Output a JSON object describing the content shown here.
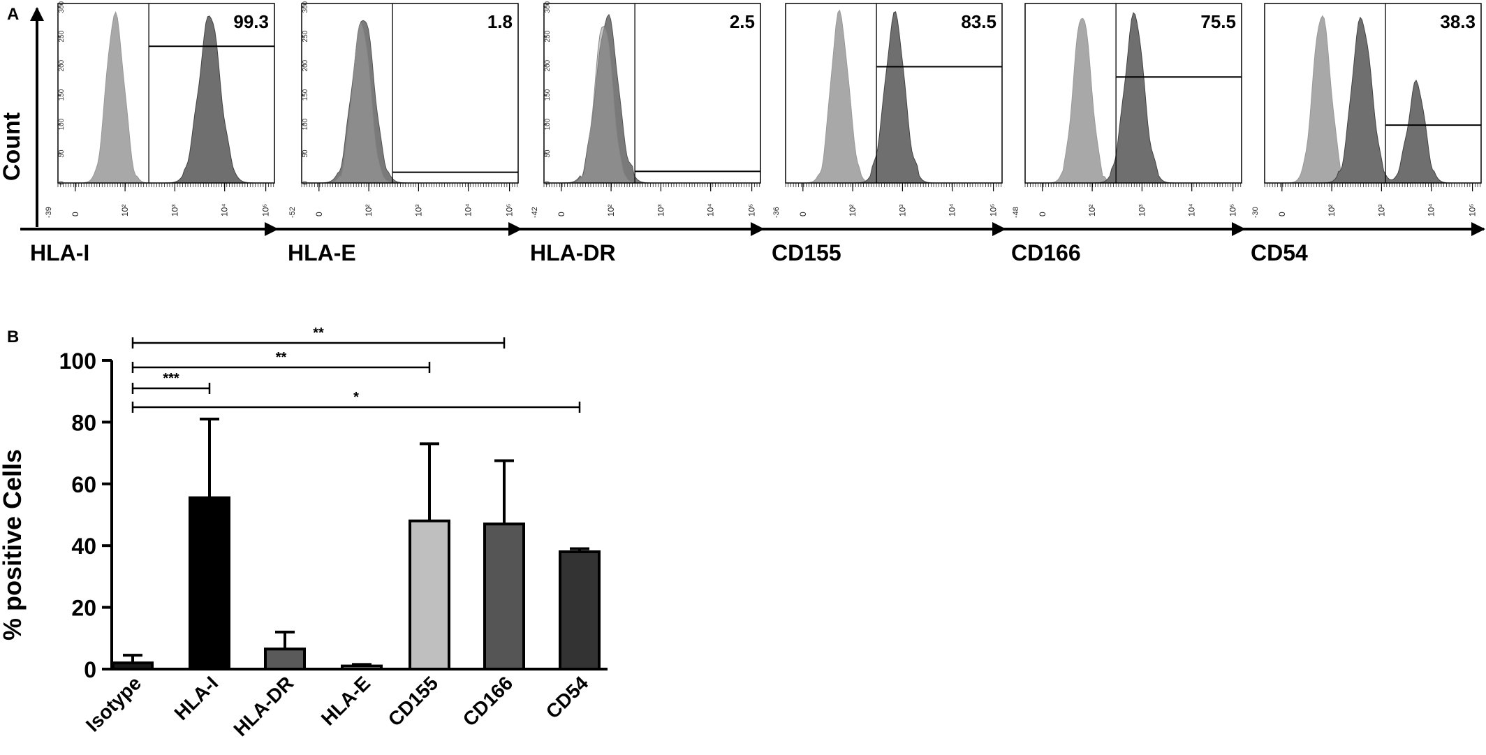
{
  "figure": {
    "panel_a_label": "A",
    "panel_b_label": "B"
  },
  "chart_data": [
    {
      "type": "histogram",
      "panel": "A",
      "ylabel": "Count",
      "x_scale": "biexponential",
      "panels": [
        {
          "marker": "HLA-I",
          "percent_positive": "99.3",
          "x_min_tick": "-39",
          "x_ticks": [
            "0",
            "10²",
            "10³",
            "10⁴",
            "10⁵"
          ],
          "y_ticks": [
            "0",
            "50",
            "100",
            "150",
            "200",
            "250",
            "300"
          ],
          "gate_start": 300,
          "isotype_peak": 40,
          "stained_peak": 5000,
          "stained_width": 0.75
        },
        {
          "marker": "HLA-E",
          "percent_positive": "1.8",
          "x_min_tick": "-52",
          "x_ticks": [
            "0",
            "10²",
            "10³",
            "10⁴",
            "10⁵"
          ],
          "y_ticks": [
            "0",
            "50",
            "100",
            "150",
            "200",
            "250",
            "300"
          ],
          "gate_start": 300,
          "isotype_peak": 50,
          "stained_peak": 60,
          "stained_width": 0.75
        },
        {
          "marker": "HLA-DR",
          "percent_positive": "2.5",
          "x_min_tick": "-42",
          "x_ticks": [
            "0",
            "10²",
            "10³",
            "10⁴",
            "10⁵"
          ],
          "y_ticks": [
            "0",
            "50",
            "100",
            "150",
            "200",
            "250",
            "300"
          ],
          "gate_start": 300,
          "isotype_peak": 50,
          "stained_peak": 70,
          "stained_width": 0.75
        },
        {
          "marker": "CD155",
          "percent_positive": "83.5",
          "x_min_tick": "-36",
          "x_ticks": [
            "0",
            "10²",
            "10³",
            "10⁴",
            "10⁵"
          ],
          "y_ticks": [],
          "gate_start": 300,
          "isotype_peak": 30,
          "stained_peak": 700,
          "stained_width": 0.7
        },
        {
          "marker": "CD166",
          "percent_positive": "75.5",
          "x_min_tick": "-48",
          "x_ticks": [
            "0",
            "10²",
            "10³",
            "10⁴",
            "10⁵"
          ],
          "y_ticks": [],
          "gate_start": 300,
          "isotype_peak": 40,
          "stained_peak": 700,
          "stained_width": 0.7
        },
        {
          "marker": "CD54",
          "percent_positive": "38.3",
          "x_min_tick": "-30",
          "x_ticks": [
            "0",
            "10²",
            "10³",
            "10⁴",
            "10⁵"
          ],
          "y_ticks": [],
          "gate_start": 1200,
          "isotype_peak": 40,
          "stained_peak": 400,
          "stained_width": 0.7,
          "second_peak": 5000
        }
      ]
    },
    {
      "type": "bar",
      "panel": "B",
      "ylabel": "% positive Cells",
      "ylim": [
        0,
        100
      ],
      "yticks": [
        "0",
        "20",
        "40",
        "60",
        "80",
        "100"
      ],
      "categories": [
        "Isotype",
        "HLA-I",
        "HLA-DR",
        "HLA-E",
        "CD155",
        "CD166",
        "CD54"
      ],
      "values": [
        2,
        55.5,
        6.5,
        1,
        48,
        47,
        38
      ],
      "error_upper": [
        4.5,
        81,
        12,
        1.5,
        73,
        67.5,
        39
      ],
      "bar_colors": [
        "#1a1a1a",
        "#000000",
        "#5a5a5a",
        "#ffffff",
        "#bfbfbf",
        "#555555",
        "#333333"
      ],
      "significance": [
        {
          "from": "Isotype",
          "to": "CD54",
          "label": "*"
        },
        {
          "from": "Isotype",
          "to": "HLA-I",
          "label": "***"
        },
        {
          "from": "Isotype",
          "to": "CD155",
          "label": "**"
        },
        {
          "from": "Isotype",
          "to": "CD166",
          "label": "**"
        }
      ]
    }
  ]
}
